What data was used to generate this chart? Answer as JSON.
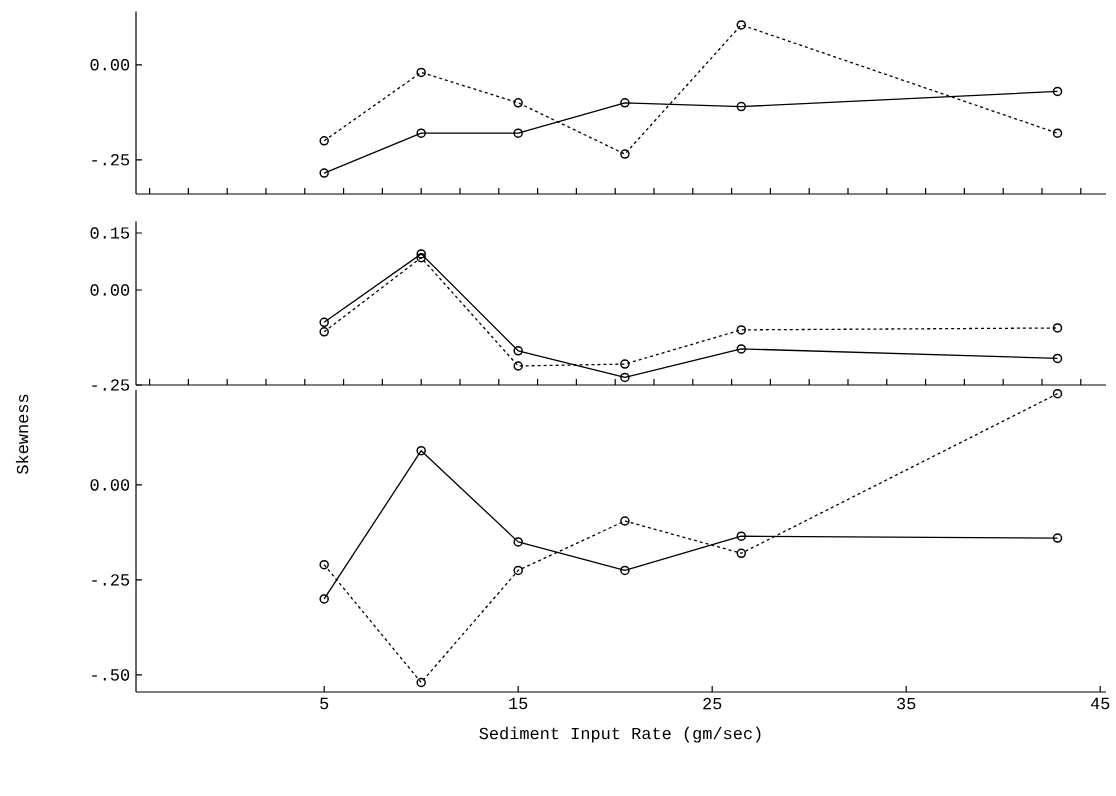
{
  "chart_data": [
    {
      "type": "line",
      "x": [
        5,
        10,
        15,
        20.5,
        26.5,
        42.8
      ],
      "xlim": [
        -4.7,
        45.3
      ],
      "ylim": [
        -0.34,
        0.14
      ],
      "yticks": [
        {
          "value": 0,
          "label": "0.00"
        },
        {
          "value": -0.25,
          "label": "-.25"
        }
      ],
      "tick_labels": "y",
      "marker": "circle",
      "series": [
        {
          "color": "#000000",
          "line_style": "solid",
          "values": [
            -0.285,
            -0.18,
            -0.18,
            -0.1,
            -0.11,
            -0.07
          ]
        },
        {
          "color": "#000000",
          "line_style": "dashed",
          "values": [
            -0.2,
            -0.02,
            -0.1,
            -0.235,
            0.105,
            -0.18
          ]
        }
      ]
    },
    {
      "type": "line",
      "x": [
        5,
        10,
        15,
        20.5,
        26.5,
        42.8
      ],
      "xlim": [
        -4.7,
        45.3
      ],
      "ylim": [
        -0.25,
        0.18
      ],
      "yticks": [
        {
          "value": 0.15,
          "label": "0.15"
        },
        {
          "value": 0,
          "label": "0.00"
        },
        {
          "value": -0.25,
          "label": "-.25"
        }
      ],
      "tick_labels": "y",
      "marker": "circle",
      "ylabel": "Skewness",
      "series": [
        {
          "color": "#000000",
          "line_style": "solid",
          "values": [
            -0.085,
            0.095,
            -0.16,
            -0.23,
            -0.155,
            -0.18
          ]
        },
        {
          "color": "#000000",
          "line_style": "dashed",
          "values": [
            -0.11,
            0.085,
            -0.2,
            -0.195,
            -0.105,
            -0.1
          ]
        }
      ]
    },
    {
      "type": "line",
      "x": [
        5,
        10,
        15,
        20.5,
        26.5,
        42.8
      ],
      "xlim": [
        -4.7,
        45.3
      ],
      "ylim": [
        -0.545,
        0.25
      ],
      "xticks": [
        5,
        15,
        25,
        35,
        45
      ],
      "yticks": [
        {
          "value": 0,
          "label": "0.00"
        },
        {
          "value": -0.25,
          "label": "-.25"
        },
        {
          "value": -0.5,
          "label": "-.50"
        }
      ],
      "marker": "circle",
      "xlabel": "Sediment Input Rate (gm/sec)",
      "series": [
        {
          "color": "#000000",
          "line_style": "solid",
          "values": [
            -0.3,
            0.09,
            -0.15,
            -0.225,
            -0.135,
            -0.14
          ]
        },
        {
          "color": "#000000",
          "line_style": "dashed",
          "values": [
            -0.21,
            -0.52,
            -0.225,
            -0.095,
            -0.18,
            0.24
          ]
        }
      ]
    }
  ]
}
